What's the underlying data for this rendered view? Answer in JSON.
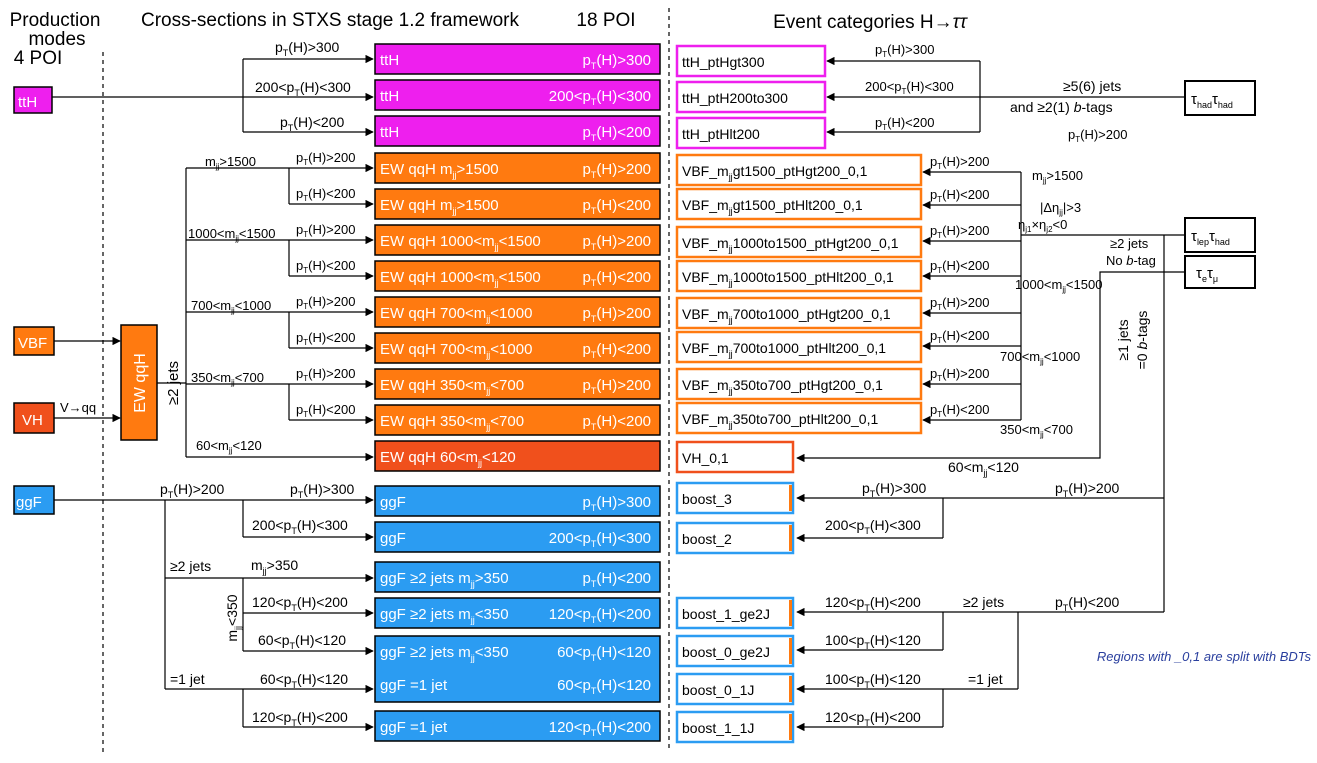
{
  "headers": {
    "prod_modes": "Production modes",
    "prod_poi": "4 POI",
    "xs_title": "Cross-sections in STXS stage 1.2 framework",
    "xs_poi": "18 POI",
    "ev_title": "Event categories H→ττ"
  },
  "production_modes": [
    "ttH",
    "VBF",
    "VH",
    "ggF"
  ],
  "ewqqh_label": "EW qqH",
  "vh_label": "V→qq",
  "colors": {
    "tth": "#ee1fee",
    "vbf": "#ff7a10",
    "vh": "#f0501c",
    "ggf": "#2b9cf2"
  },
  "poi": [
    {
      "l": "ttH",
      "r": "pT(H)>300"
    },
    {
      "l": "ttH",
      "r": "200<pT(H)<300"
    },
    {
      "l": "ttH",
      "r": "pT(H)<200"
    },
    {
      "l": "EW qqH mjj>1500",
      "r": "pT(H)>200"
    },
    {
      "l": "EW qqH mjj>1500",
      "r": "pT(H)<200"
    },
    {
      "l": "EW qqH 1000<mjj<1500",
      "r": "pT(H)>200"
    },
    {
      "l": "EW qqH 1000<mjj<1500",
      "r": "pT(H)<200"
    },
    {
      "l": "EW qqH 700<mjj<1000",
      "r": "pT(H)>200"
    },
    {
      "l": "EW qqH 700<mjj<1000",
      "r": "pT(H)<200"
    },
    {
      "l": "EW qqH 350<mjj<700",
      "r": "pT(H)>200"
    },
    {
      "l": "EW qqH 350<mjj<700",
      "r": "pT(H)<200"
    },
    {
      "l": "EW qqH 60<mjj<120",
      "r": ""
    },
    {
      "l": "ggF",
      "r": "pT(H)>300"
    },
    {
      "l": "ggF",
      "r": "200<pT(H)<300"
    },
    {
      "l": "ggF ≥2 jets mjj>350",
      "r": "pT(H)<200"
    },
    {
      "l": "ggF ≥2 jets mjj<350",
      "r": "120<pT(H)<200"
    },
    {
      "l": "ggF ≥2 jets mjj<350",
      "r": "60<pT(H)<120"
    },
    {
      "l": "ggF =1 jet",
      "r": "60<pT(H)<120"
    },
    {
      "l": "ggF =1 jet",
      "r": "120<pT(H)<200"
    }
  ],
  "categories": [
    "ttH_ptHgt300",
    "ttH_ptH200to300",
    "ttH_ptHlt200",
    "VBF_mjjgt1500_ptHgt200_0,1",
    "VBF_mjjgt1500_ptHlt200_0,1",
    "VBF_mjj1000to1500_ptHgt200_0,1",
    "VBF_mjj1000to1500_ptHlt200_0,1",
    "VBF_mjj700to1000_ptHgt200_0,1",
    "VBF_mjj700to1000_ptHlt200_0,1",
    "VBF_mjj350to700_ptHgt200_0,1",
    "VBF_mjj350to700_ptHlt200_0,1",
    "VH_0,1",
    "boost_3",
    "boost_2",
    "boost_1_ge2J",
    "boost_0_ge2J",
    "boost_0_1J",
    "boost_1_1J"
  ],
  "channels": [
    "τhadτhad",
    "τlepτhad",
    "τeτμ"
  ],
  "left_labels": {
    "jets2": "≥2 jets",
    "mjj_gt1500": "mjj>1500",
    "mjj_1000_1500": "1000<mjj<1500",
    "mjj_700_1000": "700<mjj<1000",
    "mjj_350_700": "350<mjj<700",
    "mjj_60_120": "60<mjj<120",
    "pt_gt200": "pT(H)>200",
    "pt_lt200": "pT(H)<200",
    "pt_gt300": "pT(H)>300",
    "pt_200_300": "200<pT(H)<300",
    "ggf_jets2": "≥2 jets",
    "ggf_mjj_gt350": "mjj>350",
    "ggf_mjj_lt350": "mjj<350",
    "pt_120_200": "120<pT(H)<200",
    "pt_60_120": "60<pT(H)<120",
    "jet1": "=1 jet"
  },
  "right_labels": {
    "tth_jets": "≥5(6) jets",
    "tth_btags": "and ≥2(1) b-tags",
    "tth_pt200": "pT(H)>200",
    "deta": "|Δηjj|>3",
    "eta_prod": "ηj1×ηj2<0",
    "r_mjj_gt1500": "mjj>1500",
    "r_1000_1500": "1000<mjj<1500",
    "r_700_1000": "700<mjj<1000",
    "r_350_700": "350<mjj<700",
    "r_60_120": "60<mjj<120",
    "ge2_nob": "≥2 jets",
    "no_btag": "No b-tag",
    "ge1_jets": "≥1 jets",
    "zero_btags": "=0 b-tags",
    "boost_pt_gt200": "pT(H)>200",
    "boost_pt_lt200": "pT(H)<200",
    "boost_pt_gt300": "pT(H)>300",
    "boost_pt_200_300": "200<pT(H)<300",
    "boost_pt_120_200": "120<pT(H)<200",
    "boost_pt_100_120": "100<pT(H)<120",
    "boost_ge2": "≥2 jets",
    "boost_1jet": "=1 jet",
    "tth_pt_gt300": "pT(H)>300",
    "tth_pt_200_300": "200<pT(H)<300",
    "tth_pt_lt200": "pT(H)<200",
    "vbf_pt_gt200": "pT(H)>200",
    "vbf_pt_lt200": "pT(H)<200"
  },
  "note": "Regions with _0,1 are split with BDTs"
}
